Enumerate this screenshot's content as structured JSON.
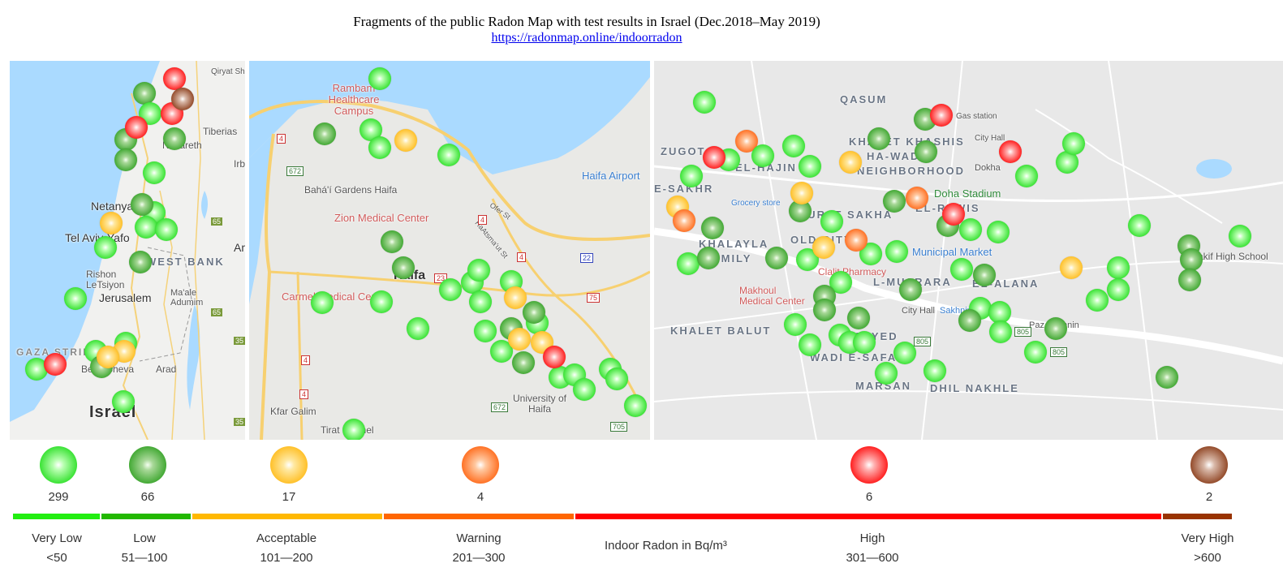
{
  "header": {
    "title": "Fragments of the public Radon Map with test results in Israel (Dec.2018–May 2019)",
    "link": "https://radonmap.online/indoorradon"
  },
  "maps": {
    "panels": [
      {
        "name": "Israel overview",
        "labels": [
          "Qiryat Shemona",
          "Tiberias",
          "Nazareth",
          "Irbid",
          "Netanya",
          "Tel Aviv-Yafo",
          "Rishon LeTsiyon",
          "WEST BANK",
          "Jerusalem",
          "Ma'ale Adumim",
          "GAZA STRIP",
          "Be'er Sheva",
          "Arad",
          "Israel",
          "Amman",
          "65",
          "65",
          "35",
          "35"
        ]
      },
      {
        "name": "Haifa",
        "labels": [
          "Rambam Healthcare Campus",
          "Haifa Airport",
          "Bahá'í Gardens Haifa",
          "Zion Medical Center",
          "Haifa",
          "Carmel Medical Center",
          "University of Haifa",
          "Kfar Galim",
          "Tirat Carmel",
          "Ofer St",
          "HaAtsma'ut St",
          "4",
          "4",
          "4",
          "4",
          "4",
          "22",
          "23",
          "75",
          "672",
          "672",
          "705"
        ]
      },
      {
        "name": "Sakhnin",
        "labels": [
          "QASUM",
          "ZUGOT",
          "EL-HAJIN",
          "E-SAKHR",
          "KHALET KHASHIS",
          "HA-WADIM",
          "NEIGHBORHOOD",
          "Gas station",
          "City Hall",
          "Dokha",
          "Doha Stadium",
          "EL-REWIS",
          "JURAT SAKHA",
          "OLD CITY",
          "KHALAYLA",
          "FAMILY",
          "Grocery store",
          "Municipal Market",
          "L-MUSRARA",
          "EL-ALANA",
          "Makif High School",
          "Clalit Pharmacy",
          "Makhoul Medical Center",
          "KHALET BALUT",
          "E-SAYED",
          "WADI E-SAFA",
          "City Hall",
          "Sakhnin Mall",
          "Paz Sakhnin",
          "MARSAN",
          "DHIL NAKHLE",
          "805",
          "805",
          "805"
        ]
      }
    ]
  },
  "legend": {
    "unit_label": "Indoor Radon in Bq/m³",
    "categories": [
      {
        "key": "vlow",
        "name": "Very Low",
        "range": "<50",
        "count": "299",
        "color": "#2fe02a",
        "bar_color": "#22ee11"
      },
      {
        "key": "low",
        "name": "Low",
        "range": "51—100",
        "count": "66",
        "color": "#3aa52c",
        "bar_color": "#22b800"
      },
      {
        "key": "acc",
        "name": "Acceptable",
        "range": "101—200",
        "count": "17",
        "color": "#ffbd1f",
        "bar_color": "#ffb800"
      },
      {
        "key": "warn",
        "name": "Warning",
        "range": "201—300",
        "count": "4",
        "color": "#ff6a1a",
        "bar_color": "#ff6600"
      },
      {
        "key": "high",
        "name": "High",
        "range": "301—600",
        "count": "6",
        "color": "#ff1414",
        "bar_color": "#ff0000"
      },
      {
        "key": "vhigh",
        "name": "Very High",
        "range": ">600",
        "count": "2",
        "color": "#8e4220",
        "bar_color": "#993300"
      }
    ]
  }
}
